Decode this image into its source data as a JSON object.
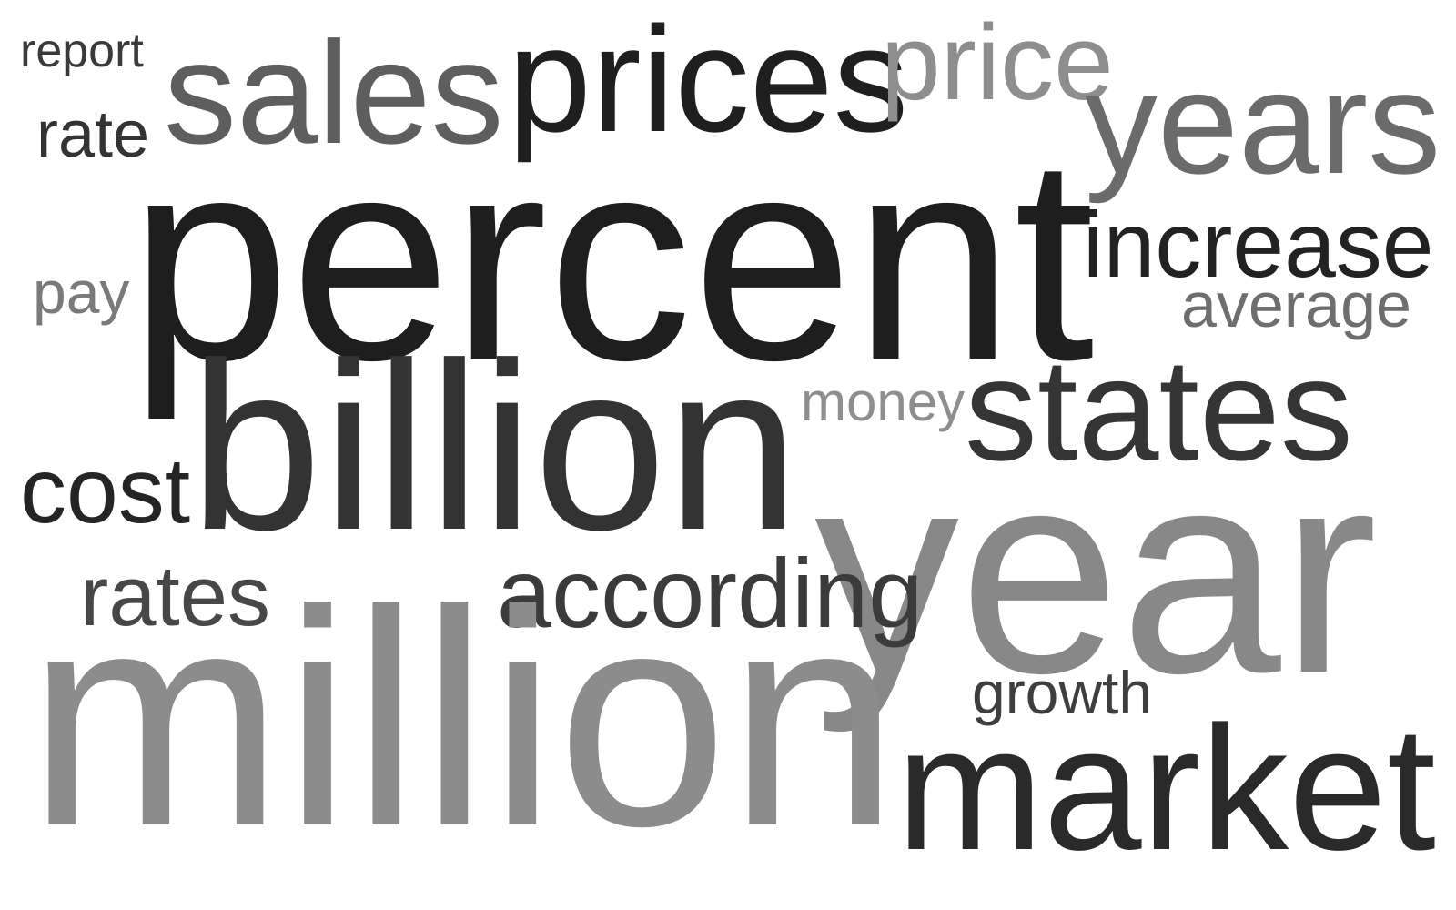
{
  "words": [
    {
      "key": "report",
      "text": "report",
      "color": "#3a3a3a"
    },
    {
      "key": "sales",
      "text": "sales",
      "color": "#5e5e5e"
    },
    {
      "key": "prices",
      "text": "prices",
      "color": "#1f1f1f"
    },
    {
      "key": "price",
      "text": "price",
      "color": "#8e8e8e"
    },
    {
      "key": "years",
      "text": "years",
      "color": "#6b6b6b"
    },
    {
      "key": "rate",
      "text": "rate",
      "color": "#333333"
    },
    {
      "key": "percent",
      "text": "percent",
      "color": "#1e1e1e"
    },
    {
      "key": "increase",
      "text": "increase",
      "color": "#222222"
    },
    {
      "key": "pay",
      "text": "pay",
      "color": "#7a7a7a"
    },
    {
      "key": "average",
      "text": "average",
      "color": "#6e6e6e"
    },
    {
      "key": "billion",
      "text": "billion",
      "color": "#333333"
    },
    {
      "key": "money",
      "text": "money",
      "color": "#8e8e8e"
    },
    {
      "key": "states",
      "text": "states",
      "color": "#353535"
    },
    {
      "key": "cost",
      "text": "cost",
      "color": "#252525"
    },
    {
      "key": "year",
      "text": "year",
      "color": "#888888"
    },
    {
      "key": "rates",
      "text": "rates",
      "color": "#474747"
    },
    {
      "key": "according",
      "text": "according",
      "color": "#3b3b3b"
    },
    {
      "key": "million",
      "text": "million",
      "color": "#8c8c8c"
    },
    {
      "key": "growth",
      "text": "growth",
      "color": "#3e3e3e"
    },
    {
      "key": "market",
      "text": "market",
      "color": "#2a2a2a"
    }
  ]
}
